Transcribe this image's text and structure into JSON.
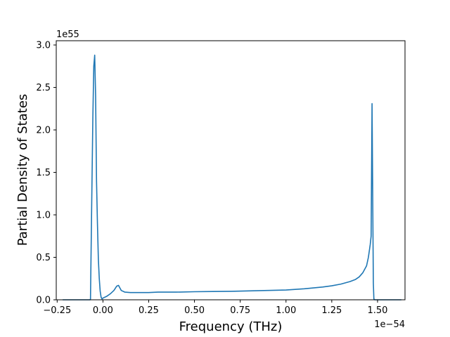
{
  "chart_data": {
    "type": "line",
    "xlabel": "Frequency (THz)",
    "ylabel": "Partial Density of States",
    "x_scale_text": "1e−54",
    "y_scale_text": "1e55",
    "xlim": [
      -0.255,
      1.65
    ],
    "ylim": [
      0,
      3.05
    ],
    "x_ticks": [
      -0.25,
      0.0,
      0.25,
      0.5,
      0.75,
      1.0,
      1.25,
      1.5
    ],
    "x_tick_labels": [
      "−0.25",
      "0.00",
      "0.25",
      "0.50",
      "0.75",
      "1.00",
      "1.25",
      "1.50"
    ],
    "y_ticks": [
      0.0,
      0.5,
      1.0,
      1.5,
      2.0,
      2.5,
      3.0
    ],
    "y_tick_labels": [
      "0.0",
      "0.5",
      "1.0",
      "1.5",
      "2.0",
      "2.5",
      "3.0"
    ],
    "grid": false,
    "series": [
      {
        "color": "#1f77b4",
        "x": [
          -0.22,
          -0.07,
          -0.068,
          -0.06,
          -0.055,
          -0.05,
          -0.045,
          -0.04,
          -0.035,
          -0.03,
          -0.025,
          -0.02,
          -0.015,
          -0.01,
          -0.005,
          0.0,
          0.02,
          0.04,
          0.06,
          0.075,
          0.085,
          0.09,
          0.095,
          0.1,
          0.12,
          0.15,
          0.2,
          0.25,
          0.3,
          0.4,
          0.5,
          0.6,
          0.7,
          0.8,
          0.9,
          1.0,
          1.1,
          1.2,
          1.25,
          1.3,
          1.35,
          1.38,
          1.4,
          1.42,
          1.44,
          1.45,
          1.46,
          1.465,
          1.47,
          1.475,
          1.477,
          1.48,
          1.485,
          1.5,
          1.55,
          1.6,
          1.63
        ],
        "values": [
          0,
          0,
          0.01,
          1.35,
          2.15,
          2.75,
          2.88,
          2.4,
          1.4,
          0.9,
          0.48,
          0.25,
          0.1,
          0.03,
          0.01,
          0.02,
          0.04,
          0.07,
          0.11,
          0.16,
          0.17,
          0.15,
          0.13,
          0.11,
          0.09,
          0.085,
          0.085,
          0.085,
          0.09,
          0.09,
          0.095,
          0.098,
          0.1,
          0.105,
          0.11,
          0.115,
          0.13,
          0.15,
          0.165,
          0.185,
          0.215,
          0.24,
          0.27,
          0.32,
          0.4,
          0.5,
          0.65,
          0.75,
          2.31,
          0.8,
          0.2,
          0.01,
          0,
          0,
          0,
          0,
          0
        ]
      }
    ]
  }
}
